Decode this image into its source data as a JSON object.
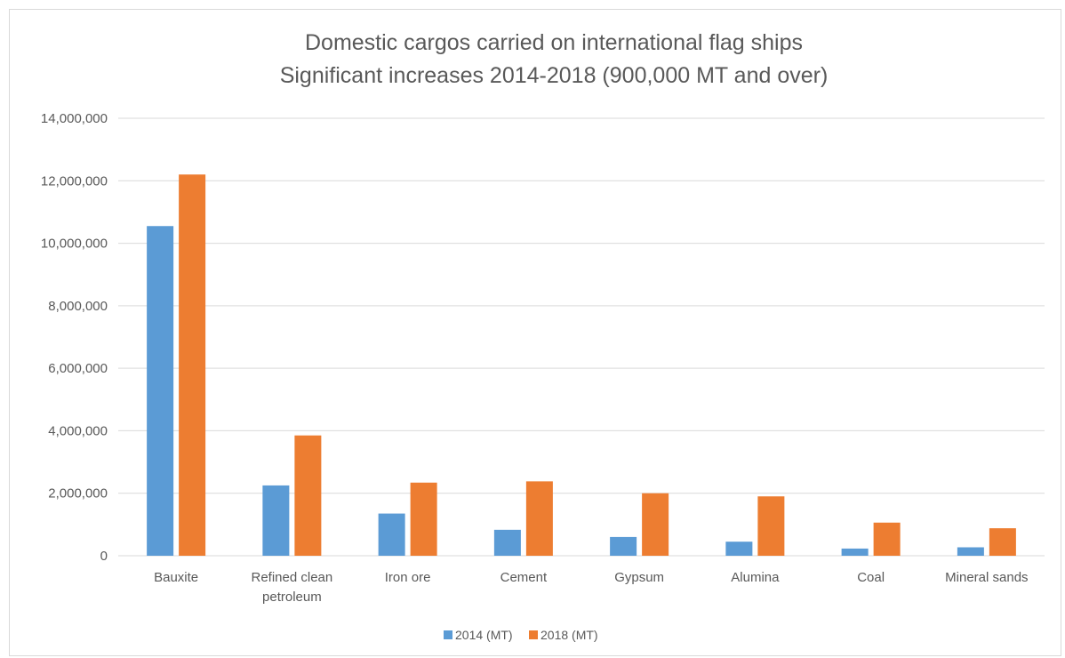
{
  "chart_data": {
    "type": "bar",
    "title": "Domestic cargos carried on international flag ships",
    "subtitle": "Significant increases 2014-2018 (900,000 MT and over)",
    "categories": [
      "Bauxite",
      "Refined clean petroleum",
      "Iron ore",
      "Cement",
      "Gypsum",
      "Alumina",
      "Coal",
      "Mineral sands"
    ],
    "category_lines": [
      [
        "Bauxite"
      ],
      [
        "Refined clean",
        "petroleum"
      ],
      [
        "Iron ore"
      ],
      [
        "Cement"
      ],
      [
        "Gypsum"
      ],
      [
        "Alumina"
      ],
      [
        "Coal"
      ],
      [
        "Mineral sands"
      ]
    ],
    "series": [
      {
        "name": "2014 (MT)",
        "color": "#5b9bd5",
        "values": [
          10550000,
          2250000,
          1350000,
          830000,
          600000,
          450000,
          230000,
          270000
        ]
      },
      {
        "name": "2018 (MT)",
        "color": "#ed7d31",
        "values": [
          12200000,
          3850000,
          2340000,
          2380000,
          2000000,
          1900000,
          1060000,
          880000
        ]
      }
    ],
    "ylim": [
      0,
      14000000
    ],
    "yticks": [
      0,
      2000000,
      4000000,
      6000000,
      8000000,
      10000000,
      12000000,
      14000000
    ],
    "ytick_labels": [
      "0",
      "2,000,000",
      "4,000,000",
      "6,000,000",
      "8,000,000",
      "10,000,000",
      "12,000,000",
      "14,000,000"
    ],
    "xlabel": "",
    "ylabel": "",
    "grid": true,
    "legend_position": "bottom"
  }
}
